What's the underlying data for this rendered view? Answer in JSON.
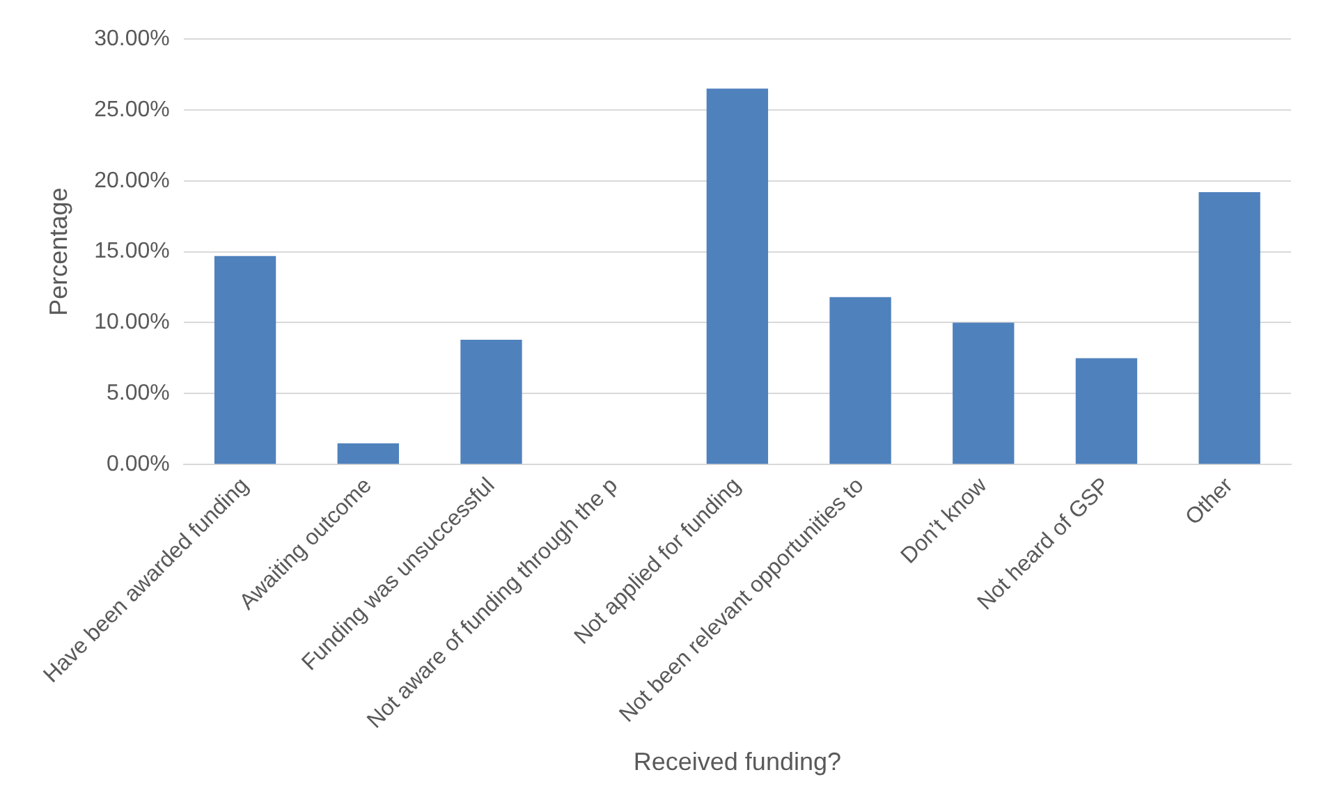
{
  "chart_data": {
    "type": "bar",
    "categories": [
      "Have been awarded funding",
      "Awaiting outcome",
      "Funding was unsuccessful",
      "Not aware of funding through the p",
      "Not applied for funding",
      "Not been relevant opportunities to",
      "Don’t know",
      "Not heard of GSP",
      "Other"
    ],
    "values": [
      14.7,
      1.5,
      8.8,
      0,
      26.5,
      11.8,
      10.0,
      7.5,
      19.2
    ],
    "color": "#4f81bd",
    "xlabel": "Received funding?",
    "ylabel": "Percentage",
    "ylim": [
      0,
      30
    ],
    "yticks": [
      {
        "value": 0,
        "label": "0.00%"
      },
      {
        "value": 5,
        "label": "5.00%"
      },
      {
        "value": 10,
        "label": "10.00%"
      },
      {
        "value": 15,
        "label": "15.00%"
      },
      {
        "value": 20,
        "label": "20.00%"
      },
      {
        "value": 25,
        "label": "25.00%"
      },
      {
        "value": 30,
        "label": "30.00%"
      }
    ],
    "grid": "y",
    "legend": false
  }
}
